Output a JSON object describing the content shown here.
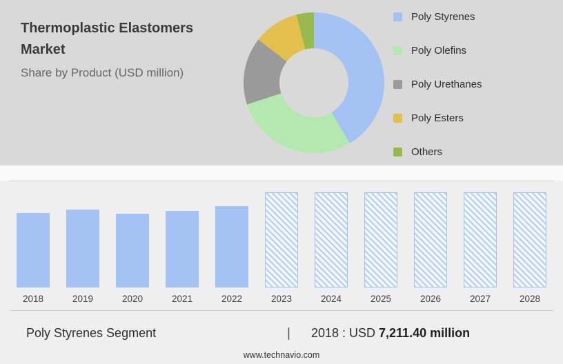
{
  "header": {
    "title_line1": "Thermoplastic Elastomers",
    "title_line2": "Market",
    "subtitle": "Share by Product (USD million)"
  },
  "legend": [
    {
      "label": "Poly Styrenes",
      "color": "#a4c2f4"
    },
    {
      "label": "Poly Olefins",
      "color": "#b5e8b0"
    },
    {
      "label": "Poly Urethanes",
      "color": "#9a9a9a"
    },
    {
      "label": "Poly Esters",
      "color": "#e3bf4d"
    },
    {
      "label": "Others",
      "color": "#97b94e"
    }
  ],
  "chart_data": [
    {
      "type": "pie",
      "donut": true,
      "title": "Share by Product (USD million)",
      "labels": [
        "Poly Styrenes",
        "Poly Olefins",
        "Poly Urethanes",
        "Poly Esters",
        "Others"
      ],
      "values_pct": [
        41.5,
        28.5,
        15.5,
        10.5,
        4
      ],
      "colors": [
        "#a4c2f4",
        "#b5e8b0",
        "#9a9a9a",
        "#e3bf4d",
        "#97b94e"
      ],
      "legend_position": "right"
    },
    {
      "type": "bar",
      "categories": [
        "2018",
        "2019",
        "2020",
        "2021",
        "2022",
        "2023",
        "2024",
        "2025",
        "2026",
        "2027",
        "2028"
      ],
      "series": [
        {
          "name": "Poly Styrenes (USD million)",
          "values": [
            7211.4,
            7580,
            7165,
            7440,
            7905,
            null,
            null,
            null,
            null,
            null,
            null
          ],
          "note": "Only 2018 value labeled (7,211.40); 2019-2022 estimated from bar heights; 2023-2028 are hatched forecast bars with undisclosed values"
        }
      ],
      "forecast_years": [
        "2023",
        "2024",
        "2025",
        "2026",
        "2027",
        "2028"
      ],
      "xlabel": "",
      "ylabel": "",
      "grid": false,
      "legend_position": "none"
    }
  ],
  "bar_chart": {
    "bars": [
      {
        "year": "2018",
        "height_pct": 78,
        "forecast": false
      },
      {
        "year": "2019",
        "height_pct": 82,
        "forecast": false
      },
      {
        "year": "2020",
        "height_pct": 77.5,
        "forecast": false
      },
      {
        "year": "2021",
        "height_pct": 80.5,
        "forecast": false
      },
      {
        "year": "2022",
        "height_pct": 85.5,
        "forecast": false
      },
      {
        "year": "2023",
        "height_pct": 100,
        "forecast": true
      },
      {
        "year": "2024",
        "height_pct": 100,
        "forecast": true
      },
      {
        "year": "2025",
        "height_pct": 100,
        "forecast": true
      },
      {
        "year": "2026",
        "height_pct": 100,
        "forecast": true
      },
      {
        "year": "2027",
        "height_pct": 100,
        "forecast": true
      },
      {
        "year": "2028",
        "height_pct": 100,
        "forecast": true
      }
    ],
    "bar_color": "#a4c2f4"
  },
  "footer": {
    "segment_label": "Poly Styrenes Segment",
    "separator": "|",
    "year_label": "2018 : USD",
    "value": "7,211.40 million"
  },
  "website": "www.technavio.com",
  "colors": {
    "top_panel_bg": "#d9d9d9",
    "lower_bg": "#efefef",
    "accent_blue": "#a4c2f4"
  }
}
